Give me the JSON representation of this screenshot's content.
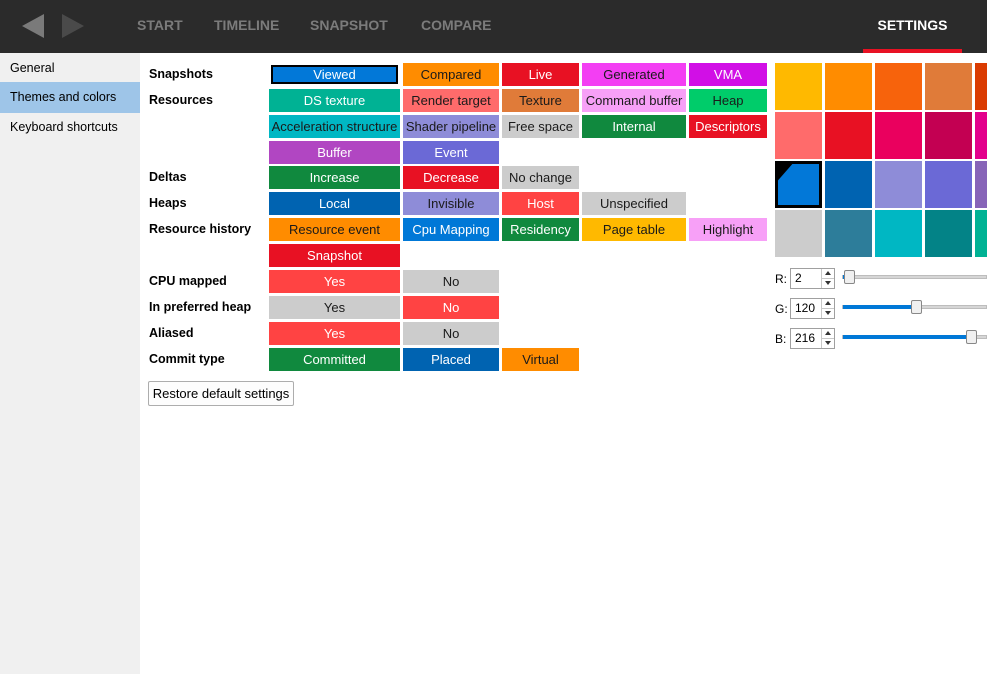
{
  "nav": {
    "back_icon": "back-arrow-icon",
    "forward_icon": "forward-arrow-icon",
    "tabs": [
      "START",
      "TIMELINE",
      "SNAPSHOT",
      "COMPARE"
    ],
    "settings_tab": "SETTINGS",
    "active_tab_color": "#e81123"
  },
  "sidebar": {
    "items": [
      "General",
      "Themes and colors",
      "Keyboard shortcuts"
    ],
    "selected": "Themes and colors"
  },
  "rows": {
    "snapshots": {
      "label": "Snapshots",
      "items": [
        {
          "label": "Viewed",
          "color": "#0278d8"
        },
        {
          "label": "Compared",
          "color": "#ff8c00"
        },
        {
          "label": "Live",
          "color": "#e81123"
        },
        {
          "label": "Generated",
          "color": "#f33ef3"
        },
        {
          "label": "VMA",
          "color": "#d10fe6"
        }
      ]
    },
    "resources": {
      "label": "Resources",
      "items": [
        {
          "label": "DS texture",
          "color": "#00b294"
        },
        {
          "label": "Render target",
          "color": "#ff6b6b"
        },
        {
          "label": "Texture",
          "color": "#e07b39"
        },
        {
          "label": "Command buffer",
          "color": "#f7a0f7"
        },
        {
          "label": "Heap",
          "color": "#00cc6a"
        },
        {
          "label": "Acceleration structure",
          "color": "#00b7c3"
        },
        {
          "label": "Shader pipeline",
          "color": "#8e8cd8"
        },
        {
          "label": "Free space",
          "color": "#cccccc"
        },
        {
          "label": "Internal",
          "color": "#10893e"
        },
        {
          "label": "Descriptors",
          "color": "#e81123"
        },
        {
          "label": "Buffer",
          "color": "#b146c2"
        },
        {
          "label": "Event",
          "color": "#6b69d6"
        }
      ]
    },
    "deltas": {
      "label": "Deltas",
      "items": [
        {
          "label": "Increase",
          "color": "#10893e"
        },
        {
          "label": "Decrease",
          "color": "#e81123"
        },
        {
          "label": "No change",
          "color": "#cccccc"
        }
      ]
    },
    "heaps": {
      "label": "Heaps",
      "items": [
        {
          "label": "Local",
          "color": "#0063b1"
        },
        {
          "label": "Invisible",
          "color": "#8e8cd8"
        },
        {
          "label": "Host",
          "color": "#ff4343"
        },
        {
          "label": "Unspecified",
          "color": "#cccccc"
        }
      ]
    },
    "resource_history": {
      "label": "Resource history",
      "items": [
        {
          "label": "Resource event",
          "color": "#ff8c00"
        },
        {
          "label": "Cpu Mapping",
          "color": "#0078d7"
        },
        {
          "label": "Residency",
          "color": "#10893e"
        },
        {
          "label": "Page table",
          "color": "#ffb900"
        },
        {
          "label": "Highlight",
          "color": "#f7a0f7"
        },
        {
          "label": "Snapshot",
          "color": "#e81123"
        }
      ]
    },
    "cpu_mapped": {
      "label": "CPU mapped",
      "items": [
        {
          "label": "Yes",
          "color": "#ff4343"
        },
        {
          "label": "No",
          "color": "#cccccc"
        }
      ]
    },
    "preferred_heap": {
      "label": "In preferred heap",
      "items": [
        {
          "label": "Yes",
          "color": "#cccccc"
        },
        {
          "label": "No",
          "color": "#ff4343"
        }
      ]
    },
    "aliased": {
      "label": "Aliased",
      "items": [
        {
          "label": "Yes",
          "color": "#ff4343"
        },
        {
          "label": "No",
          "color": "#cccccc"
        }
      ]
    },
    "commit_type": {
      "label": "Commit type",
      "items": [
        {
          "label": "Committed",
          "color": "#10893e"
        },
        {
          "label": "Placed",
          "color": "#0063b1"
        },
        {
          "label": "Virtual",
          "color": "#ff8c00"
        }
      ]
    }
  },
  "restore_button": "Restore default settings",
  "palette": {
    "rows": [
      [
        "#ffb900",
        "#ff8c00",
        "#f7630c",
        "#e07b39",
        "#da3b01"
      ],
      [
        "#ff6b6b",
        "#e81123",
        "#ea005e",
        "#c30052",
        "#e3008c"
      ],
      [
        "#0278d8",
        "#0063b1",
        "#8e8cd8",
        "#6b69d6",
        "#8764b8"
      ],
      [
        "#cccccc",
        "#2d7d9a",
        "#00b7c3",
        "#038387",
        "#00b294"
      ]
    ],
    "selected_color": "#0278d8"
  },
  "rgb": {
    "r_label": "R:",
    "r_value": "2",
    "r_level": 0.008,
    "g_label": "G:",
    "g_value": "120",
    "g_level": 0.47,
    "b_label": "B:",
    "b_value": "216",
    "b_level": 0.85
  }
}
